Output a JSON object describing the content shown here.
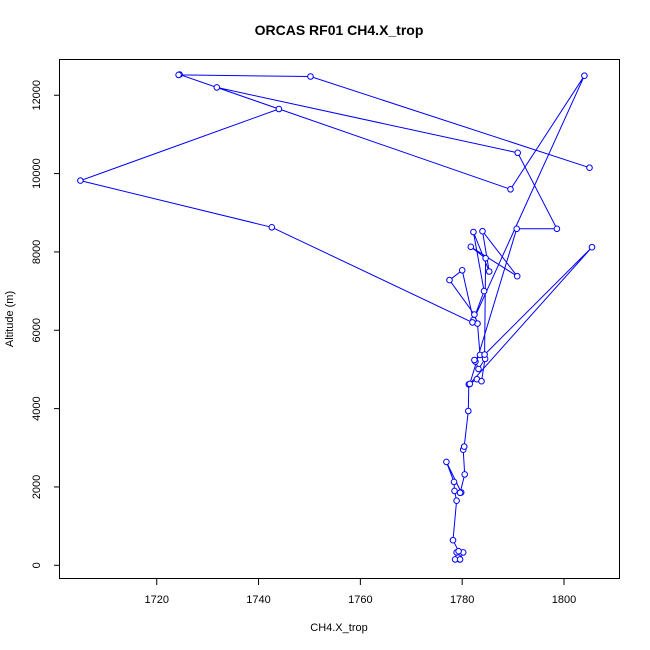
{
  "chart_data": {
    "type": "line",
    "title": "ORCAS RF01 CH4.X_trop",
    "xlabel": "CH4.X_trop",
    "ylabel": "Altitude (m)",
    "xlim": [
      1701,
      1811
    ],
    "ylim": [
      -350,
      12900
    ],
    "x_ticks": [
      1720,
      1740,
      1760,
      1780,
      1800
    ],
    "y_ticks": [
      0,
      2000,
      4000,
      6000,
      8000,
      10000,
      12000
    ],
    "grid": false,
    "series_color": "#0000ff",
    "markers": "open-circle",
    "series": [
      {
        "values": [
          [
            1779.5,
            150
          ],
          [
            1779.2,
            200
          ],
          [
            1778.6,
            150
          ],
          [
            1779.6,
            150
          ],
          [
            1780.2,
            330
          ],
          [
            1778.9,
            330
          ],
          [
            1779.3,
            360
          ],
          [
            1778.2,
            640
          ],
          [
            1778.9,
            1650
          ],
          [
            1778.5,
            1900
          ],
          [
            1778.4,
            2130
          ],
          [
            1776.9,
            2640
          ],
          [
            1779.8,
            1860
          ],
          [
            1779.6,
            1850
          ],
          [
            1780.5,
            2320
          ],
          [
            1780.2,
            2950
          ],
          [
            1780.4,
            3030
          ],
          [
            1781.2,
            3940
          ],
          [
            1781.3,
            4620
          ],
          [
            1782.9,
            4750
          ],
          [
            1783.8,
            4700
          ],
          [
            1784.5,
            5270
          ],
          [
            1783.2,
            5010
          ],
          [
            1782.6,
            5200
          ],
          [
            1782.4,
            5240
          ],
          [
            1783.5,
            5370
          ],
          [
            1783.0,
            6170
          ],
          [
            1782.4,
            6400
          ],
          [
            1777.5,
            7280
          ],
          [
            1780.0,
            7530
          ],
          [
            1782.2,
            6260
          ],
          [
            1784.3,
            7000
          ],
          [
            1782.2,
            8510
          ],
          [
            1785.3,
            7500
          ],
          [
            1784.0,
            8530
          ],
          [
            1790.8,
            7380
          ],
          [
            1781.7,
            8130
          ],
          [
            1784.6,
            7840
          ],
          [
            1784.4,
            5380
          ],
          [
            1805.5,
            8120
          ],
          [
            1781.5,
            4630
          ],
          [
            1790.7,
            8590
          ],
          [
            1798.6,
            8590
          ],
          [
            1790.9,
            10530
          ],
          [
            1731.8,
            12200
          ],
          [
            1744.0,
            11650
          ],
          [
            1705.0,
            9820
          ],
          [
            1742.6,
            8630
          ],
          [
            1782.0,
            6200
          ],
          [
            1804.0,
            12500
          ],
          [
            1789.5,
            9600
          ],
          [
            1724.5,
            12530
          ],
          [
            1724.3,
            12520
          ],
          [
            1750.2,
            12480
          ],
          [
            1805.0,
            10150
          ]
        ]
      }
    ]
  }
}
